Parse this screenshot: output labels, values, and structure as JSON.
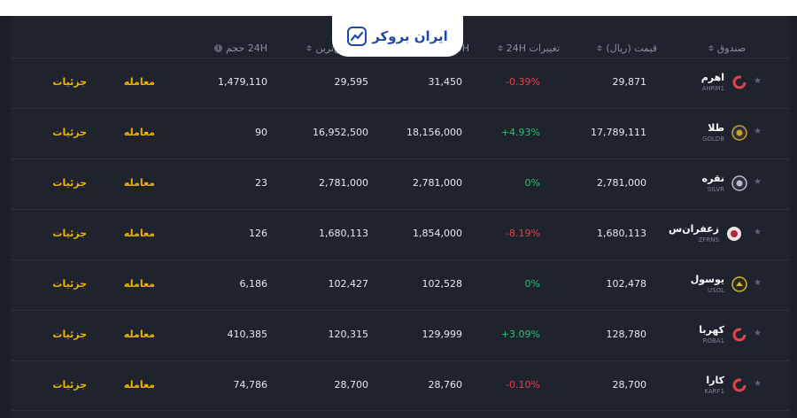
{
  "brand": {
    "name": "ایران بروکر"
  },
  "columns": {
    "fund": "صندوق",
    "price": "قیمت (ریال)",
    "change": "تغییرات 24H",
    "high": "24H بالاترین",
    "low": "24H پایین‌ترین",
    "volume": "24H حجم"
  },
  "actions": {
    "trade": "معامله",
    "details": "جزئیات"
  },
  "rows": [
    {
      "name": "اهرم",
      "symbol": "AHRM1",
      "price": "29,871",
      "change": "-0.39%",
      "high": "31,450",
      "low": "29,595",
      "volume": "1,479,110",
      "logo": "ring",
      "color": "#e0454a"
    },
    {
      "name": "طلا",
      "symbol": "GOLDB",
      "price": "17,789,111",
      "change": "+4.93%",
      "high": "18,156,000",
      "low": "16,952,500",
      "volume": "90",
      "logo": "coin",
      "color": "#c9a227"
    },
    {
      "name": "نقره",
      "symbol": "SILVR",
      "price": "2,781,000",
      "change": "0%",
      "high": "2,781,000",
      "low": "2,781,000",
      "volume": "23",
      "logo": "coin",
      "color": "#b8bcc6"
    },
    {
      "name": "زعفران‌س",
      "symbol": "ZFRNS",
      "price": "1,680,113",
      "change": "-8.19%",
      "high": "1,854,000",
      "low": "1,680,113",
      "volume": "126",
      "logo": "flower",
      "color": "#b0263b"
    },
    {
      "name": "یوسول",
      "symbol": "USOL",
      "price": "102,478",
      "change": "0%",
      "high": "102,528",
      "low": "102,427",
      "volume": "6,186",
      "logo": "bird",
      "color": "#d4b832"
    },
    {
      "name": "کهربا",
      "symbol": "ROBA1",
      "price": "128,780",
      "change": "+3.09%",
      "high": "129,999",
      "low": "120,315",
      "volume": "410,385",
      "logo": "ring",
      "color": "#e0454a"
    },
    {
      "name": "کارا",
      "symbol": "KARF1",
      "price": "28,700",
      "change": "-0.10%",
      "high": "28,760",
      "low": "28,700",
      "volume": "74,786",
      "logo": "ring",
      "color": "#e0454a"
    }
  ]
}
